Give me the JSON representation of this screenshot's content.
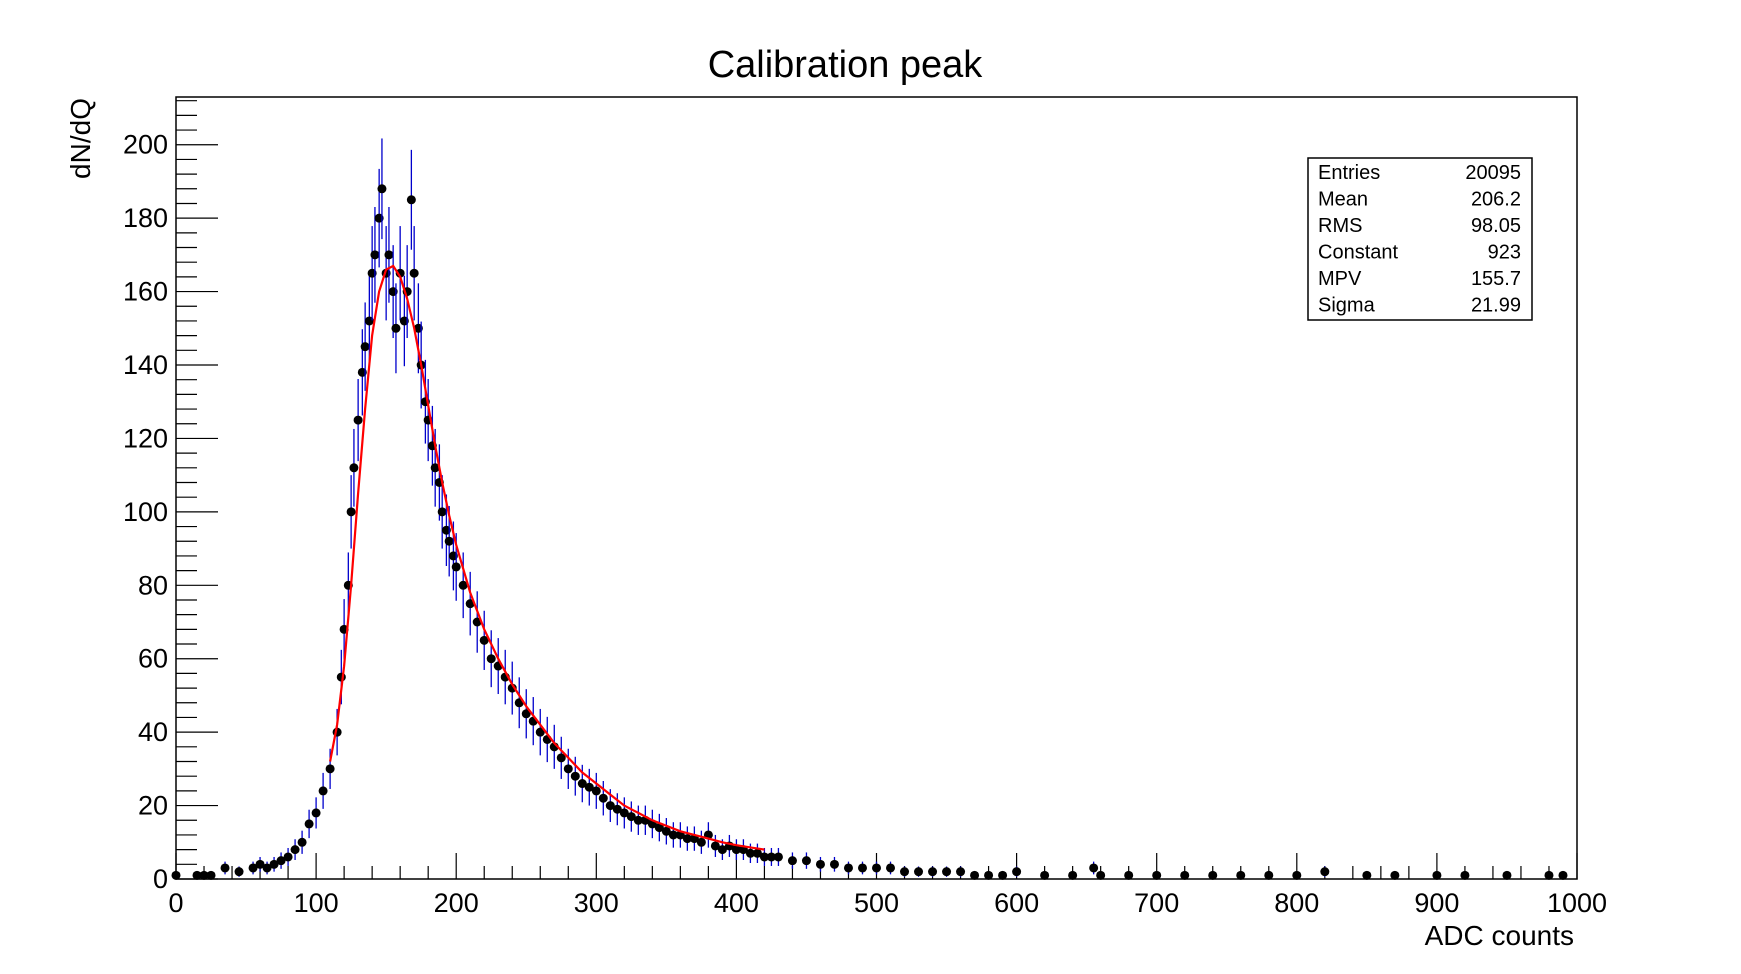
{
  "chart_data": {
    "type": "scatter",
    "title": "Calibration peak",
    "xlabel": "ADC counts",
    "ylabel": "dN/dQ",
    "xlim": [
      0,
      1000
    ],
    "ylim": [
      0,
      213
    ],
    "grid": false,
    "x_ticks": [
      0,
      100,
      200,
      300,
      400,
      500,
      600,
      700,
      800,
      900,
      1000
    ],
    "y_ticks": [
      0,
      20,
      40,
      60,
      80,
      100,
      120,
      140,
      160,
      180,
      200
    ],
    "series": [
      {
        "name": "",
        "style": "points-with-errors",
        "x": [
          0,
          15,
          20,
          25,
          35,
          45,
          55,
          60,
          65,
          70,
          75,
          80,
          85,
          90,
          95,
          100,
          105,
          110,
          115,
          118,
          120,
          123,
          125,
          127,
          130,
          133,
          135,
          138,
          140,
          142,
          145,
          147,
          150,
          152,
          155,
          157,
          160,
          163,
          165,
          168,
          170,
          173,
          175,
          178,
          180,
          183,
          185,
          188,
          190,
          193,
          195,
          198,
          200,
          205,
          210,
          215,
          220,
          225,
          230,
          235,
          240,
          245,
          250,
          255,
          260,
          265,
          270,
          275,
          280,
          285,
          290,
          295,
          300,
          305,
          310,
          315,
          320,
          325,
          330,
          335,
          340,
          345,
          350,
          355,
          360,
          365,
          370,
          375,
          380,
          385,
          390,
          395,
          400,
          405,
          410,
          415,
          420,
          425,
          430,
          440,
          450,
          460,
          470,
          480,
          490,
          500,
          510,
          520,
          530,
          540,
          550,
          560,
          570,
          580,
          590,
          600,
          620,
          640,
          655,
          660,
          680,
          700,
          720,
          740,
          760,
          780,
          800,
          820,
          850,
          870,
          900,
          920,
          950,
          980,
          990
        ],
        "y": [
          1,
          1,
          1,
          1,
          3,
          2,
          3,
          4,
          3,
          4,
          5,
          6,
          8,
          10,
          15,
          18,
          24,
          30,
          40,
          55,
          68,
          80,
          100,
          112,
          125,
          138,
          145,
          152,
          165,
          170,
          180,
          188,
          165,
          170,
          160,
          150,
          165,
          152,
          160,
          185,
          165,
          150,
          140,
          130,
          125,
          118,
          112,
          108,
          100,
          95,
          92,
          88,
          85,
          80,
          75,
          70,
          65,
          60,
          58,
          55,
          52,
          48,
          45,
          43,
          40,
          38,
          36,
          33,
          30,
          28,
          26,
          25,
          24,
          22,
          20,
          19,
          18,
          17,
          16,
          16,
          15,
          14,
          13,
          12,
          12,
          11,
          11,
          10,
          12,
          9,
          8,
          9,
          8,
          8,
          7,
          7,
          6,
          6,
          6,
          5,
          5,
          4,
          4,
          3,
          3,
          3,
          3,
          2,
          2,
          2,
          2,
          2,
          1,
          1,
          1,
          2,
          1,
          1,
          3,
          1,
          1,
          1,
          1,
          1,
          1,
          1,
          1,
          2,
          1,
          1,
          1,
          1,
          1,
          1,
          1
        ],
        "color": "#000000",
        "error_color": "#0000cc"
      },
      {
        "name": "",
        "style": "line",
        "fit": "landau",
        "x": [
          110,
          115,
          120,
          125,
          130,
          135,
          140,
          145,
          150,
          155,
          160,
          165,
          170,
          175,
          180,
          185,
          190,
          195,
          200,
          210,
          220,
          230,
          240,
          250,
          260,
          270,
          280,
          290,
          300,
          310,
          320,
          330,
          340,
          350,
          360,
          370,
          380,
          390,
          400,
          410,
          420
        ],
        "y": [
          32,
          42,
          58,
          80,
          105,
          128,
          148,
          160,
          166,
          167,
          164,
          158,
          150,
          140,
          129,
          118,
          108,
          99,
          91,
          78,
          68,
          60,
          53,
          47,
          42,
          37,
          33,
          29,
          26,
          23,
          20,
          18,
          16,
          14.5,
          13,
          12,
          11,
          10,
          9.2,
          8.6,
          8
        ],
        "color": "#ff0000"
      }
    ]
  },
  "stats_box": {
    "rows": [
      {
        "label": "Entries",
        "value": "20095"
      },
      {
        "label": "Mean",
        "value": "206.2"
      },
      {
        "label": "RMS",
        "value": "98.05"
      },
      {
        "label": "Constant",
        "value": "923"
      },
      {
        "label": "MPV",
        "value": "155.7"
      },
      {
        "label": "Sigma",
        "value": "21.99"
      }
    ]
  }
}
